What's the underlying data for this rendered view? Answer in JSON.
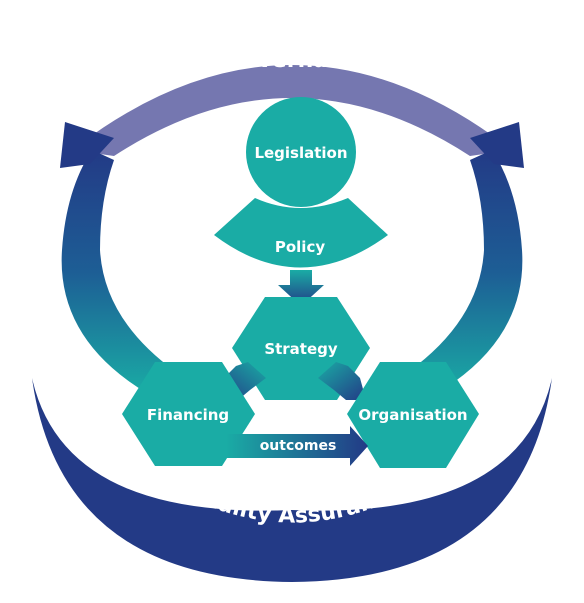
{
  "labels": {
    "governance": "Governance",
    "quality_assurance": "Quality Assurance",
    "legislation": "Legislation",
    "policy": "Policy",
    "strategy": "Strategy",
    "financing": "Financing",
    "organisation": "Organisation",
    "outcomes": "outcomes"
  },
  "colors": {
    "teal": "#1aaca5",
    "teal_dark": "#0e8f8a",
    "navy": "#233a86",
    "lavender": "#7577b0",
    "text_light": "#ffffff",
    "text_dark": "#233a86"
  }
}
